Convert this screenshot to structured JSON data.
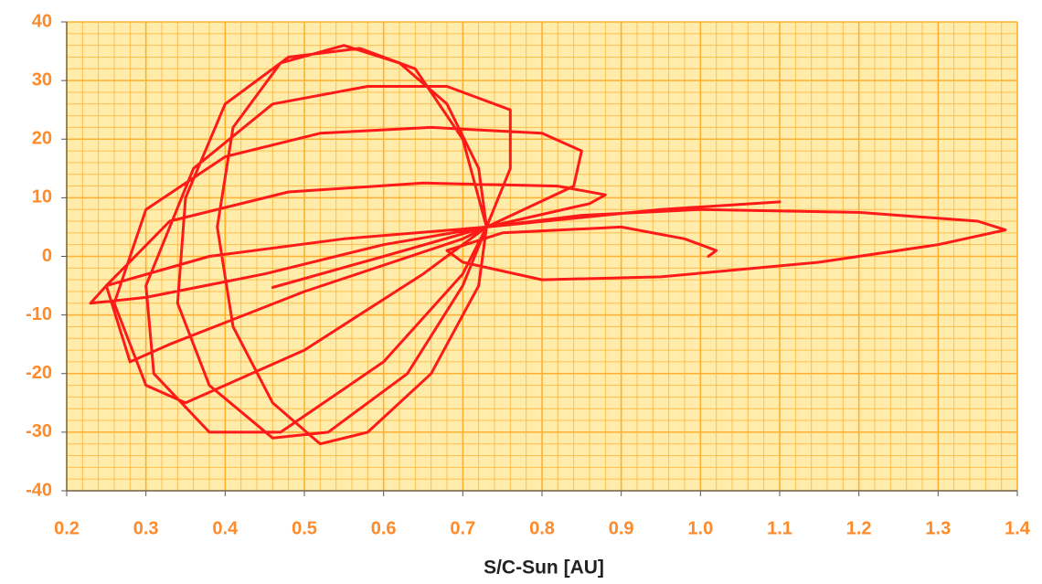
{
  "chart_data": {
    "type": "line",
    "x_label": "S/C-Sun [AU]",
    "xlim": [
      0.2,
      1.4
    ],
    "ylim": [
      -40,
      40
    ],
    "xticks": [
      0.2,
      0.3,
      0.4,
      0.5,
      0.6,
      0.7,
      0.8,
      0.9,
      {
        "value": 1,
        "label": "1.0"
      },
      1.1,
      1.2,
      1.3,
      1.4
    ],
    "yticks": [
      -40,
      -30,
      -20,
      -10,
      0,
      10,
      20,
      30,
      40
    ],
    "grid": true,
    "minor_grid": {
      "x": 0.02,
      "y": 2
    },
    "background": "#ffecaa",
    "grid_color": "#ffb030",
    "series": [
      {
        "color": "#ff1a1a",
        "x": [
          1.1,
          0.95,
          0.73,
          0.72,
          0.68,
          0.62,
          0.55,
          0.47,
          0.41,
          0.39,
          0.41,
          0.46,
          0.52,
          0.58,
          0.66,
          0.72,
          0.73,
          0.7,
          0.64,
          0.57,
          0.48,
          0.4,
          0.35,
          0.34,
          0.38,
          0.46,
          0.53,
          0.63,
          0.7,
          0.73,
          0.76,
          0.76,
          0.68,
          0.58,
          0.46,
          0.36,
          0.3,
          0.31,
          0.38,
          0.47,
          0.6,
          0.7,
          0.73,
          0.84,
          0.85,
          0.8,
          0.66,
          0.52,
          0.4,
          0.3,
          0.26,
          0.3,
          0.35,
          0.5,
          0.65,
          0.73,
          0.86,
          0.88,
          0.82,
          0.65,
          0.48,
          0.33,
          0.25,
          0.28,
          0.33,
          0.5,
          0.7,
          0.73,
          0.55,
          0.38,
          0.25,
          0.23,
          0.3,
          0.45,
          0.6,
          0.73,
          0.85,
          1.0,
          1.2,
          1.35,
          1.385,
          1.3,
          1.15,
          0.95,
          0.8,
          0.7,
          0.68,
          0.75,
          0.9,
          0.98,
          1.02,
          1.01,
          null,
          0.46,
          0.6,
          0.73
        ],
        "values": [
          9.3,
          8,
          5,
          15,
          26,
          33,
          36,
          33,
          22,
          5,
          -12,
          -25,
          -32,
          -30,
          -20,
          -5,
          5,
          20,
          32,
          35.5,
          34,
          26,
          10,
          -8,
          -22,
          -31,
          -30,
          -20,
          -5,
          5,
          15,
          25,
          29,
          29,
          26,
          15,
          -5,
          -20,
          -30,
          -30,
          -18,
          -3,
          5,
          12,
          18,
          21,
          22,
          21,
          17,
          8,
          -8,
          -22,
          -25,
          -16,
          -3,
          5,
          9,
          10.5,
          12,
          12.5,
          11,
          6,
          -5,
          -18,
          -15,
          -6,
          3,
          5,
          3,
          0,
          -5,
          -8,
          -7,
          -3,
          2,
          5,
          7,
          8,
          7.5,
          6,
          4.5,
          2,
          -1,
          -3.5,
          -4,
          -1,
          1,
          4,
          5,
          3,
          1,
          0,
          null,
          -5.3,
          0,
          5
        ]
      }
    ]
  }
}
